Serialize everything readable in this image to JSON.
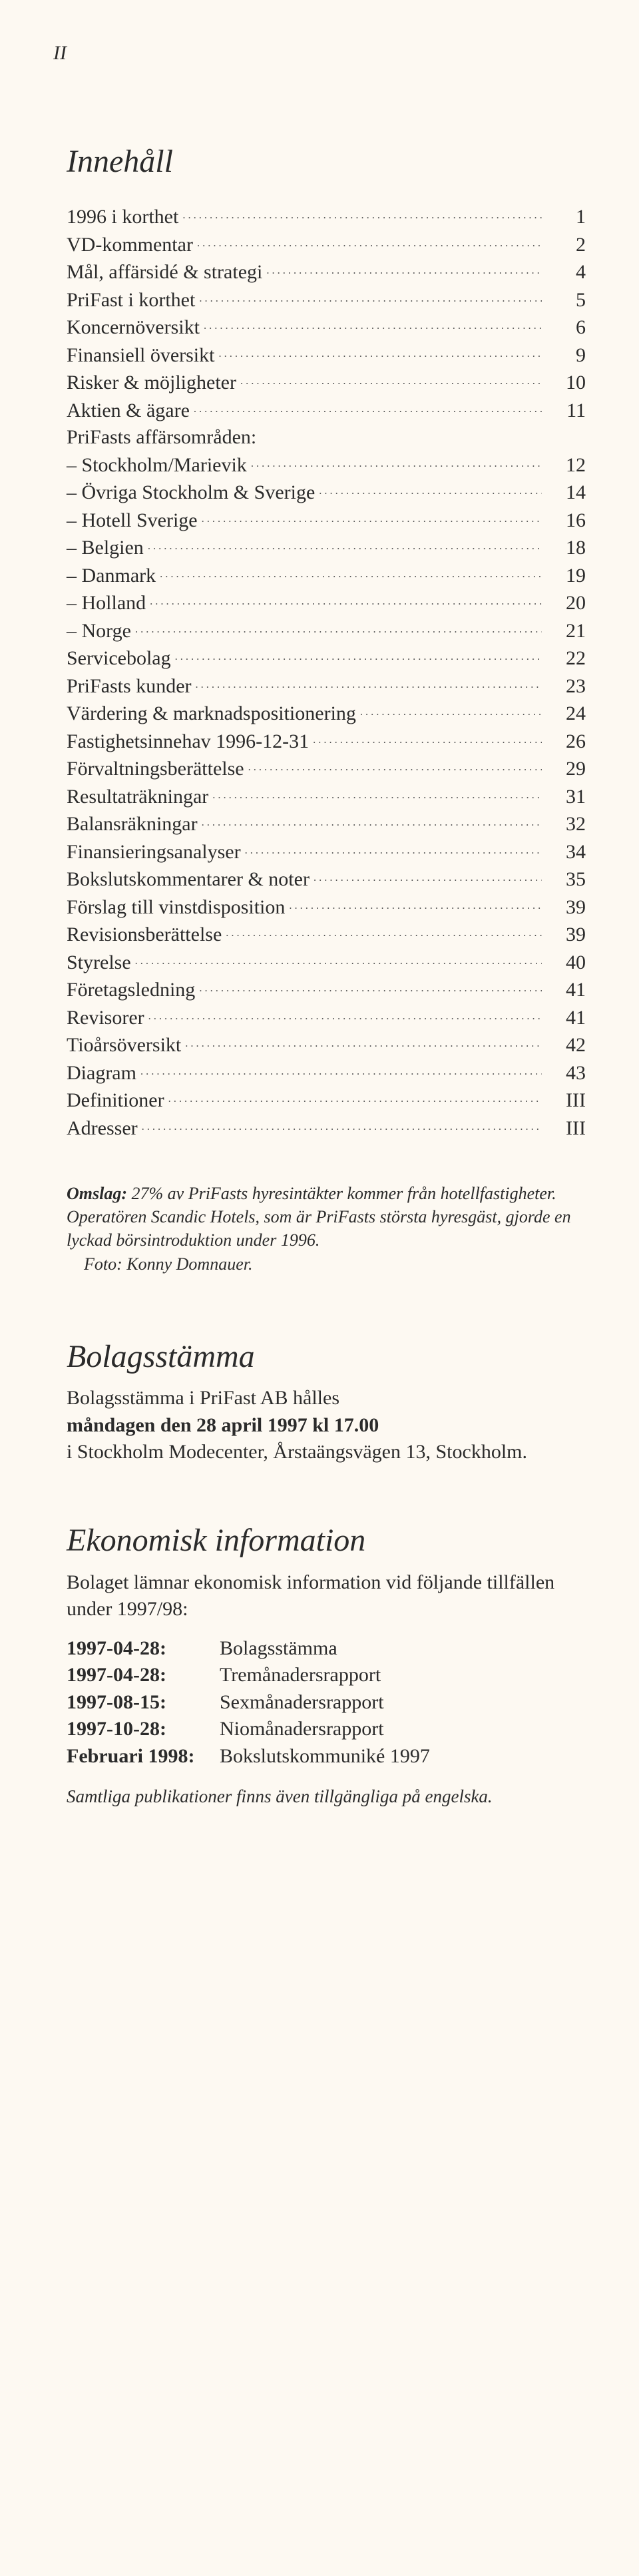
{
  "page_marker": "II",
  "toc": {
    "title": "Innehåll",
    "areas_header": "PriFasts affärsområden:",
    "entries": [
      {
        "label": "1996 i korthet",
        "page": "1"
      },
      {
        "label": "VD-kommentar",
        "page": "2"
      },
      {
        "label": "Mål, affärsidé & strategi",
        "page": "4"
      },
      {
        "label": "PriFast i korthet",
        "page": "5"
      },
      {
        "label": "Koncernöversikt",
        "page": "6"
      },
      {
        "label": "Finansiell översikt",
        "page": "9"
      },
      {
        "label": "Risker & möjligheter",
        "page": "10"
      },
      {
        "label": "Aktien & ägare",
        "page": "11"
      }
    ],
    "areas": [
      {
        "label": "– Stockholm/Marievik",
        "page": "12"
      },
      {
        "label": "– Övriga Stockholm & Sverige",
        "page": "14"
      },
      {
        "label": "– Hotell Sverige",
        "page": "16"
      },
      {
        "label": "– Belgien",
        "page": "18"
      },
      {
        "label": "– Danmark",
        "page": "19"
      },
      {
        "label": "– Holland",
        "page": "20"
      },
      {
        "label": "– Norge",
        "page": "21"
      }
    ],
    "entries2": [
      {
        "label": "Servicebolag",
        "page": "22"
      },
      {
        "label": "PriFasts kunder",
        "page": "23"
      },
      {
        "label": "Värdering & marknadspositionering",
        "page": "24"
      },
      {
        "label": "Fastighetsinnehav 1996-12-31",
        "page": "26"
      },
      {
        "label": "Förvaltningsberättelse",
        "page": "29"
      },
      {
        "label": "Resultaträkningar",
        "page": "31"
      },
      {
        "label": "Balansräkningar",
        "page": "32"
      },
      {
        "label": "Finansieringsanalyser",
        "page": "34"
      },
      {
        "label": "Bokslutskommentarer & noter",
        "page": "35"
      },
      {
        "label": "Förslag till vinstdisposition",
        "page": "39"
      },
      {
        "label": "Revisionsberättelse",
        "page": "39"
      },
      {
        "label": "Styrelse",
        "page": "40"
      },
      {
        "label": "Företagsledning",
        "page": "41"
      },
      {
        "label": "Revisorer",
        "page": "41"
      },
      {
        "label": "Tioårsöversikt",
        "page": "42"
      },
      {
        "label": "Diagram",
        "page": "43"
      },
      {
        "label": "Definitioner",
        "page": "III"
      },
      {
        "label": "Adresser",
        "page": "III"
      }
    ]
  },
  "omslag": {
    "lead": "Omslag:",
    "body": " 27% av PriFasts hyresintäkter kommer från hotellfastigheter. Operatören Scandic Hotels, som är PriFasts största hyresgäst, gjorde en lyckad börsintroduktion under 1996.",
    "foto": "Foto: Konny Domnauer."
  },
  "stamma": {
    "title": "Bolagsstämma",
    "line1": "Bolagsstämma i PriFast AB hålles",
    "line2_bold": "måndagen den 28 april 1997 kl 17.00",
    "line3": "i Stockholm Modecenter, Årstaängsvägen 13, Stockholm."
  },
  "ekoninfo": {
    "title": "Ekonomisk information",
    "intro": "Bolaget lämnar ekonomisk information vid följande tillfällen under 1997/98:",
    "rows": [
      {
        "date": "1997-04-28:",
        "desc": "Bolagsstämma"
      },
      {
        "date": "1997-04-28:",
        "desc": "Tremånadersrapport"
      },
      {
        "date": "1997-08-15:",
        "desc": "Sexmånadersrapport"
      },
      {
        "date": "1997-10-28:",
        "desc": "Niomånadersrapport"
      },
      {
        "date": "Februari 1998:",
        "desc": "Bokslutskommuniké 1997"
      }
    ],
    "footer": "Samtliga publikationer finns även tillgängliga på engelska."
  }
}
